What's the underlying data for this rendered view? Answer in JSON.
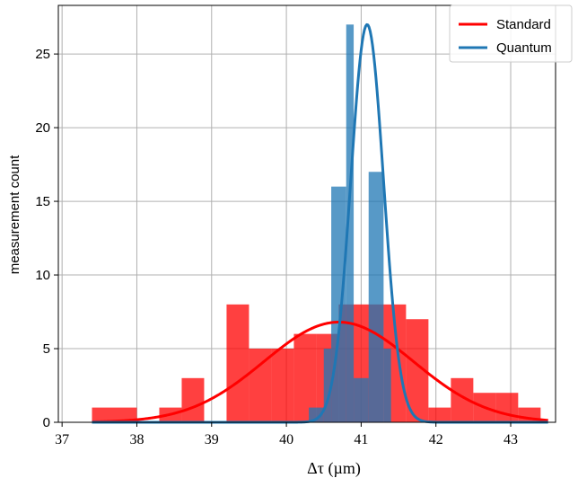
{
  "chart_data": {
    "type": "bar",
    "xlabel": "Δτ (µm)",
    "ylabel": "measurement count",
    "xlim": [
      36.95,
      43.6
    ],
    "ylim": [
      0,
      28.3
    ],
    "xticks": [
      "37",
      "38",
      "39",
      "40",
      "41",
      "42",
      "43"
    ],
    "yticks": [
      "0",
      "5",
      "10",
      "15",
      "20",
      "25"
    ],
    "grid": true,
    "legend_position": "top-right",
    "colors": {
      "standard": "#ff0000",
      "quantum": "#1f77b4"
    },
    "series": [
      {
        "name": "Standard",
        "kind": "histogram",
        "bin_edges": [
          37.4,
          38.0,
          38.3,
          38.6,
          38.9,
          39.2,
          39.5,
          39.8,
          40.1,
          40.4,
          40.7,
          41.0,
          41.3,
          41.6,
          41.9,
          42.2,
          42.5,
          42.8,
          43.1,
          43.4
        ],
        "counts": [
          1,
          0,
          1,
          3,
          0,
          8,
          5,
          5,
          6,
          6,
          8,
          8,
          8,
          7,
          1,
          3,
          2,
          2,
          1
        ]
      },
      {
        "name": "Quantum",
        "kind": "histogram",
        "bin_edges": [
          40.3,
          40.5,
          40.6,
          40.8,
          40.9,
          41.1,
          41.3,
          41.4,
          41.6,
          41.8
        ],
        "counts": [
          1,
          5,
          16,
          27,
          3,
          17,
          5,
          0,
          0
        ]
      }
    ],
    "fits": [
      {
        "name": "Standard",
        "type": "gaussian",
        "mean": 40.7,
        "sigma": 1.0,
        "amplitude": 6.8
      },
      {
        "name": "Quantum",
        "type": "gaussian",
        "mean": 41.08,
        "sigma": 0.22,
        "amplitude": 27.0
      }
    ]
  }
}
